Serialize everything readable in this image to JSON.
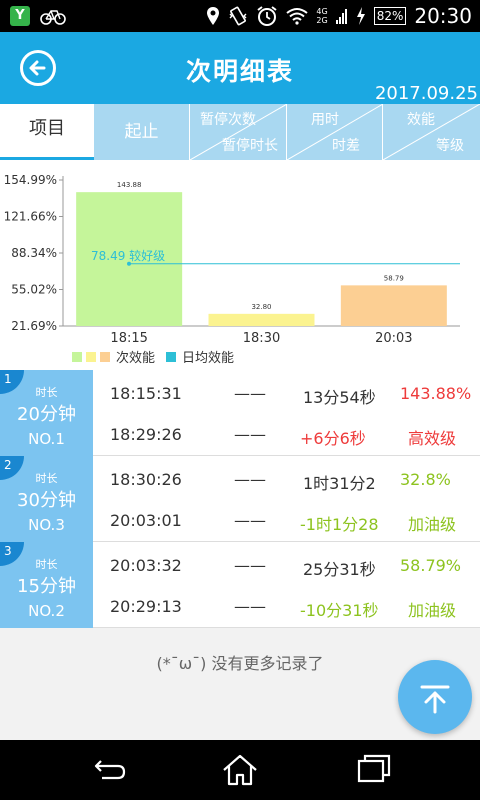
{
  "status_bar": {
    "app_badge": "Y",
    "network": "4G",
    "network2": "2G",
    "battery": "82%",
    "time": "20:30"
  },
  "header": {
    "title": "次明细表",
    "date": "2017.09.25"
  },
  "table_header": {
    "item": "项目",
    "start_end": "起止",
    "pause_count": "暂停次数",
    "pause_duration": "暂停时长",
    "time_used": "用时",
    "time_diff": "时差",
    "efficiency": "效能",
    "level": "等级"
  },
  "chart_data": {
    "type": "bar",
    "categories": [
      "18:15",
      "18:30",
      "20:03"
    ],
    "values": [
      143.88,
      32.8,
      58.79
    ],
    "value_labels": [
      "143.88",
      "32.80",
      "58.79"
    ],
    "bar_colors": [
      "#c5f59a",
      "#fbf390",
      "#fccf93"
    ],
    "yticks": [
      "154.99%",
      "121.66%",
      "88.34%",
      "55.02%",
      "21.69%"
    ],
    "ytick_values": [
      154.99,
      121.66,
      88.34,
      55.02,
      21.69
    ],
    "ylim": [
      21.69,
      154.99
    ],
    "reference_line": {
      "value": 78.49,
      "label": "78.49 较好级",
      "color": "#2dbfd6"
    },
    "legend": [
      {
        "label": "次效能",
        "colors": [
          "#c5f59a",
          "#fbf390",
          "#fccf93"
        ]
      },
      {
        "label": "日均效能",
        "colors": [
          "#2dbfd6"
        ]
      }
    ]
  },
  "records": [
    {
      "index": "1",
      "duration_label": "时长",
      "duration": "20分钟",
      "no": "NO.1",
      "start": "18:15:31",
      "end": "18:29:26",
      "pause_count": "——",
      "pause_duration": "——",
      "time_used": "13分54秒",
      "time_diff": "+6分6秒",
      "efficiency": "143.88%",
      "level": "高效级",
      "color": "red"
    },
    {
      "index": "2",
      "duration_label": "时长",
      "duration": "30分钟",
      "no": "NO.3",
      "start": "18:30:26",
      "end": "20:03:01",
      "pause_count": "——",
      "pause_duration": "——",
      "time_used": "1时31分2",
      "time_diff": "-1时1分28",
      "efficiency": "32.8%",
      "level": "加油级",
      "color": "green"
    },
    {
      "index": "3",
      "duration_label": "时长",
      "duration": "15分钟",
      "no": "NO.2",
      "start": "20:03:32",
      "end": "20:29:13",
      "pause_count": "——",
      "pause_duration": "——",
      "time_used": "25分31秒",
      "time_diff": "-10分31秒",
      "efficiency": "58.79%",
      "level": "加油级",
      "color": "green"
    }
  ],
  "footer": {
    "no_more": "(*¯ω¯) 没有更多记录了"
  },
  "icons": {
    "back": "back-arrow-icon",
    "scroll_top": "arrow-up-icon",
    "nav_back": "back-icon",
    "nav_home": "home-icon",
    "nav_recent": "recent-apps-icon"
  }
}
